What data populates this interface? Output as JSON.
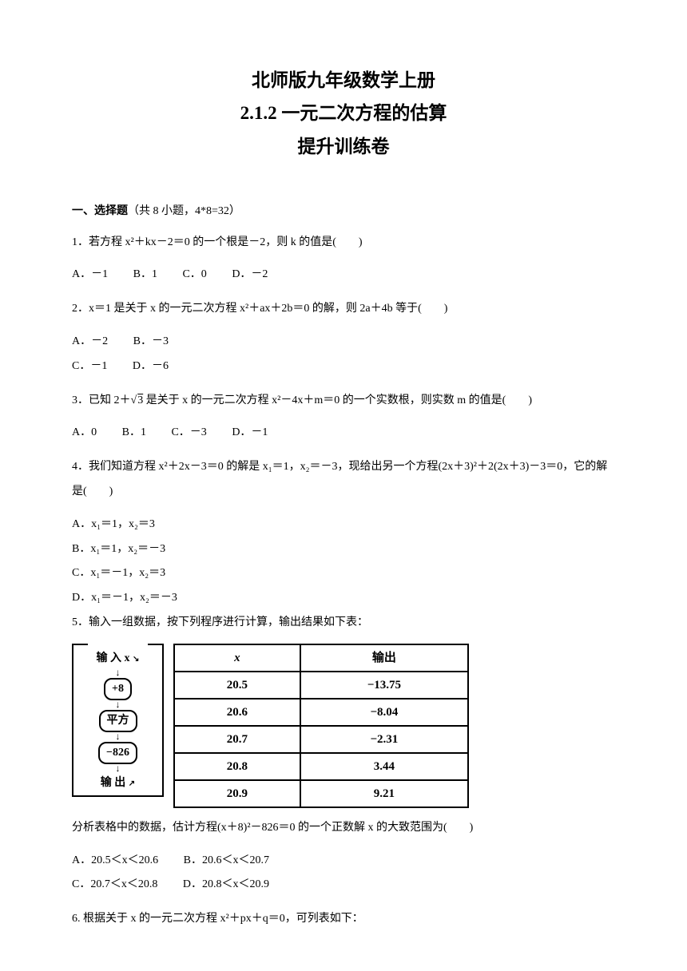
{
  "title": {
    "line1": "北师版九年级数学上册",
    "line2": "2.1.2 一元二次方程的估算",
    "line3": "提升训练卷"
  },
  "section1": {
    "label": "一、选择题",
    "detail": "（共 8 小题，4*8=32）"
  },
  "q1": {
    "text": "1．若方程 x²＋kx－2＝0 的一个根是－2，则 k 的值是(　　)",
    "a": "A．－1",
    "b": "B．1",
    "c": "C．0",
    "d": "D．－2"
  },
  "q2": {
    "text": "2．x＝1 是关于 x 的一元二次方程 x²＋ax＋2b＝0 的解，则 2a＋4b 等于(　　)",
    "a": "A．－2",
    "b": "B．－3",
    "c": "C．－1",
    "d": "D．－6"
  },
  "q3": {
    "text_prefix": "3．已知 2＋",
    "sqrt_val": "3",
    "text_suffix": " 是关于 x 的一元二次方程 x²－4x＋m＝0 的一个实数根，则实数 m 的值是(　　)",
    "a": "A．0",
    "b": "B．1",
    "c": "C．－3",
    "d": "D．－1"
  },
  "q4": {
    "text": "4．我们知道方程 x²＋2x－3＝0 的解是 x₁＝1，x₂＝－3，现给出另一个方程(2x＋3)²＋2(2x＋3)－3＝0，它的解是(　　)",
    "a": "A．x₁＝1，x₂＝3",
    "b": "B．x₁＝1，x₂＝－3",
    "c": "C．x₁＝－1，x₂＝3",
    "d": "D．x₁＝－1，x₂＝－3"
  },
  "q5": {
    "text": "5．输入一组数据，按下列程序进行计算，输出结果如下表：",
    "flowchart": {
      "input": "输 入 x",
      "step1": "+8",
      "step2": "平方",
      "step3": "−826",
      "output": "输 出"
    },
    "table": {
      "header_x": "x",
      "header_out": "输出",
      "rows": [
        {
          "x": "20.5",
          "out": "−13.75"
        },
        {
          "x": "20.6",
          "out": "−8.04"
        },
        {
          "x": "20.7",
          "out": "−2.31"
        },
        {
          "x": "20.8",
          "out": "3.44"
        },
        {
          "x": "20.9",
          "out": "9.21"
        }
      ]
    },
    "analysis": "分析表格中的数据，估计方程(x＋8)²－826＝0 的一个正数解 x 的大致范围为(　　)",
    "a": "A．20.5＜x＜20.6",
    "b": "B．20.6＜x＜20.7",
    "c": "C．20.7＜x＜20.8",
    "d": "D．20.8＜x＜20.9"
  },
  "q6": {
    "text": "6. 根据关于 x 的一元二次方程 x²＋px＋q＝0，可列表如下："
  },
  "colors": {
    "text": "#000000",
    "background": "#ffffff",
    "border": "#000000"
  }
}
